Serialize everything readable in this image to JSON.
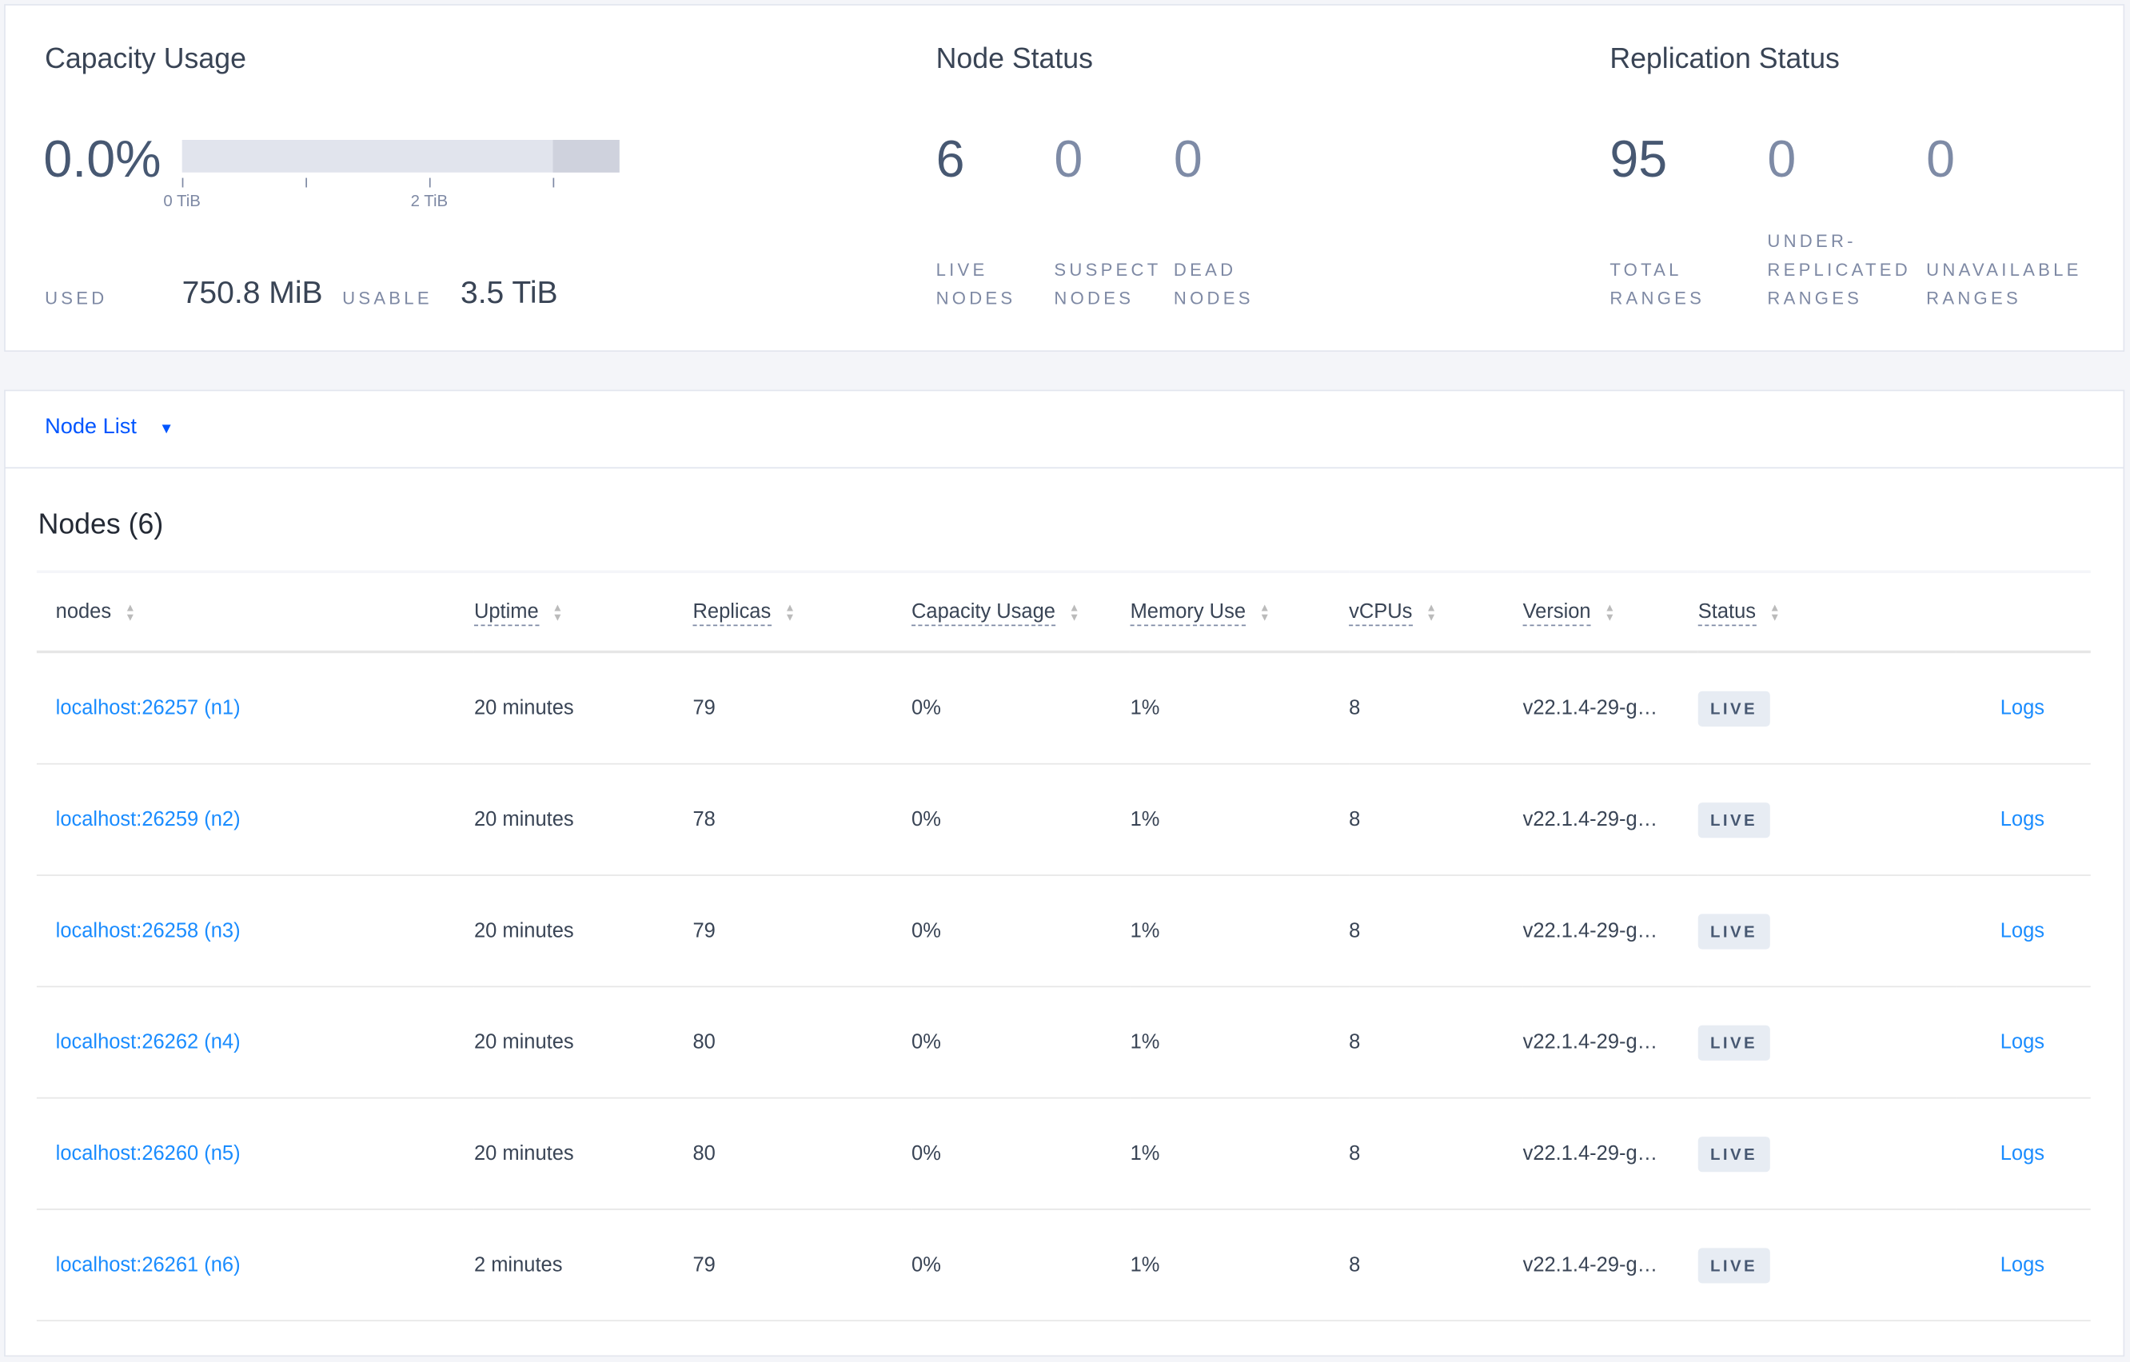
{
  "capacity": {
    "title": "Capacity Usage",
    "percent": "0.0%",
    "used_fraction": 0.0,
    "ticks": [
      "0 TiB",
      "2 TiB"
    ],
    "used_label": "USED",
    "used_value": "750.8 MiB",
    "usable_label": "USABLE",
    "usable_value": "3.5 TiB"
  },
  "node_status": {
    "title": "Node Status",
    "live": "6",
    "live_label": "LIVE\nNODES",
    "suspect": "0",
    "suspect_label": "SUSPECT\nNODES",
    "dead": "0",
    "dead_label": "DEAD\nNODES"
  },
  "replication": {
    "title": "Replication Status",
    "total": "95",
    "total_label": "TOTAL\nRANGES",
    "under": "0",
    "under_label": "UNDER-\nREPLICATED\nRANGES",
    "unavailable": "0",
    "unavailable_label": "UNAVAILABLE\nRANGES"
  },
  "view_selector": {
    "label": "Node List"
  },
  "nodes": {
    "title": "Nodes (6)",
    "columns": [
      "nodes",
      "Uptime",
      "Replicas",
      "Capacity Usage",
      "Memory Use",
      "vCPUs",
      "Version",
      "Status"
    ],
    "rows": [
      {
        "node": "localhost:26257 (n1)",
        "uptime": "20 minutes",
        "replicas": "79",
        "capacity": "0%",
        "memory": "1%",
        "vcpus": "8",
        "version": "v22.1.4-29-g…",
        "status": "LIVE",
        "logs": "Logs"
      },
      {
        "node": "localhost:26259 (n2)",
        "uptime": "20 minutes",
        "replicas": "78",
        "capacity": "0%",
        "memory": "1%",
        "vcpus": "8",
        "version": "v22.1.4-29-g…",
        "status": "LIVE",
        "logs": "Logs"
      },
      {
        "node": "localhost:26258 (n3)",
        "uptime": "20 minutes",
        "replicas": "79",
        "capacity": "0%",
        "memory": "1%",
        "vcpus": "8",
        "version": "v22.1.4-29-g…",
        "status": "LIVE",
        "logs": "Logs"
      },
      {
        "node": "localhost:26262 (n4)",
        "uptime": "20 minutes",
        "replicas": "80",
        "capacity": "0%",
        "memory": "1%",
        "vcpus": "8",
        "version": "v22.1.4-29-g…",
        "status": "LIVE",
        "logs": "Logs"
      },
      {
        "node": "localhost:26260 (n5)",
        "uptime": "20 minutes",
        "replicas": "80",
        "capacity": "0%",
        "memory": "1%",
        "vcpus": "8",
        "version": "v22.1.4-29-g…",
        "status": "LIVE",
        "logs": "Logs"
      },
      {
        "node": "localhost:26261 (n6)",
        "uptime": "2 minutes",
        "replicas": "79",
        "capacity": "0%",
        "memory": "1%",
        "vcpus": "8",
        "version": "v22.1.4-29-g…",
        "status": "LIVE",
        "logs": "Logs"
      }
    ]
  }
}
